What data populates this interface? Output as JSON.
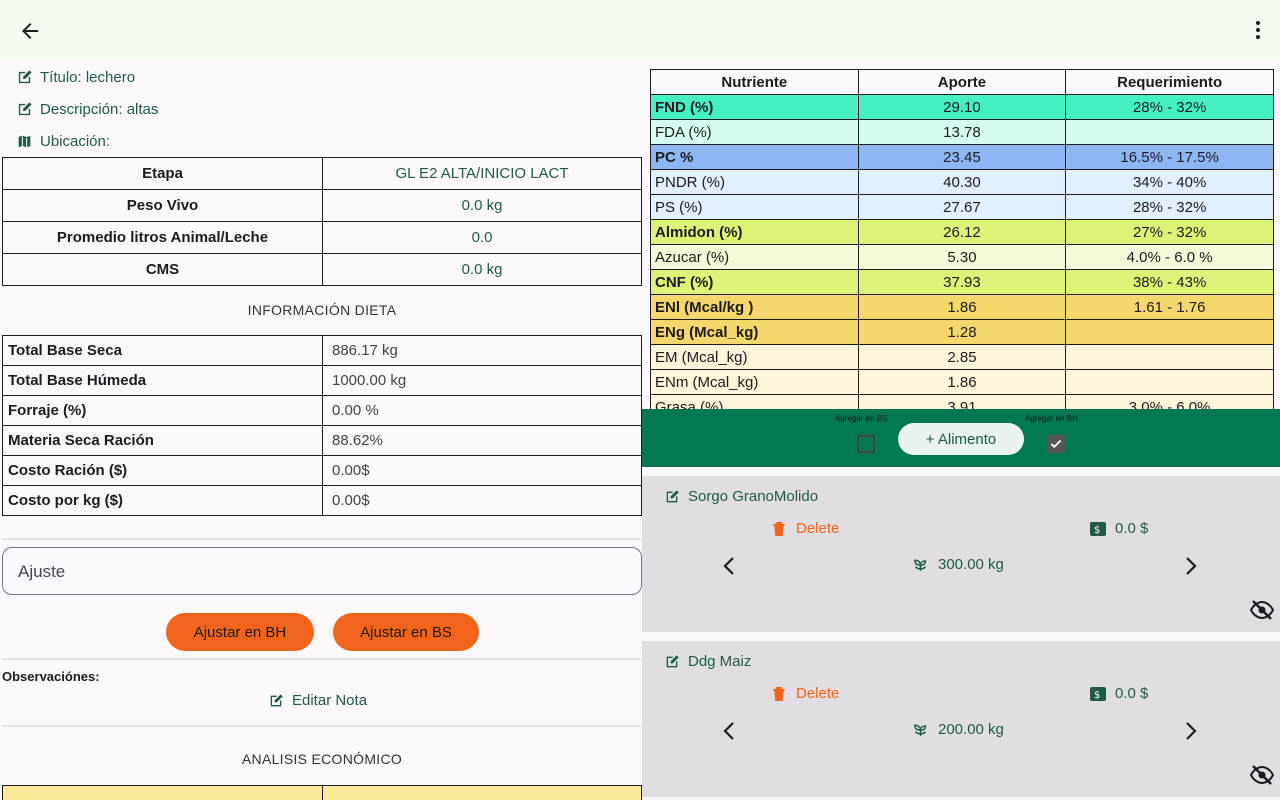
{
  "header": {
    "back_icon": "arrow-left-icon",
    "menu_icon": "more-vert-icon"
  },
  "info": {
    "titulo": "Título: lechero",
    "descripcion": "Descripción: altas",
    "ubicacion": "Ubicación:"
  },
  "animal": [
    {
      "key": "Etapa",
      "value": "GL E2 ALTA/INICIO LACT"
    },
    {
      "key": "Peso Vivo",
      "value": "0.0 kg"
    },
    {
      "key": "Promedio litros Animal/Leche",
      "value": "0.0"
    },
    {
      "key": "CMS",
      "value": "0.0 kg"
    }
  ],
  "dieta_title": "INFORMACIÓN DIETA",
  "dieta": [
    {
      "key": "Total Base Seca",
      "value": "886.17 kg"
    },
    {
      "key": "Total Base Húmeda",
      "value": "1000.00 kg"
    },
    {
      "key": "Forraje (%)",
      "value": "0.00 %"
    },
    {
      "key": "Materia Seca Ración",
      "value": "88.62%"
    },
    {
      "key": "Costo Ración ($)",
      "value": "0.00$"
    },
    {
      "key": "Costo por kg ($)",
      "value": "0.00$"
    }
  ],
  "ajuste_placeholder": "Ajuste",
  "buttons": {
    "ajustar_bh": "Ajustar en BH",
    "ajustar_bs": "Ajustar en BS"
  },
  "observaciones": "Observaciónes:",
  "editar_nota": "Editar Nota",
  "econ_title": "ANALISIS ECONÓMICO",
  "nutrients": {
    "headers": [
      "Nutriente",
      "Aporte",
      "Requerimiento"
    ],
    "rows": [
      {
        "name": "FND (%)",
        "aporte": "29.10",
        "req": "28% - 32%",
        "bold": true,
        "color": "#46f1c1"
      },
      {
        "name": "FDA (%)",
        "aporte": "13.78",
        "req": "",
        "bold": false,
        "color": "#d7fdf1"
      },
      {
        "name": "PC %",
        "aporte": "23.45",
        "req": "16.5% - 17.5%",
        "bold": true,
        "color": "#8db6f4"
      },
      {
        "name": "PNDR (%)",
        "aporte": "40.30",
        "req": "34% - 40%",
        "bold": false,
        "color": "#e0f0fc"
      },
      {
        "name": "PS (%)",
        "aporte": "27.67",
        "req": "28% - 32%",
        "bold": false,
        "color": "#e0f0fc"
      },
      {
        "name": "Almidon (%)",
        "aporte": "26.12",
        "req": "27% - 32%",
        "bold": true,
        "color": "#dcf377"
      },
      {
        "name": "Azucar (%)",
        "aporte": "5.30",
        "req": "4.0% - 6.0 %",
        "bold": false,
        "color": "#f4fad8"
      },
      {
        "name": "CNF (%)",
        "aporte": "37.93",
        "req": "38% - 43%",
        "bold": true,
        "color": "#dcf377"
      },
      {
        "name": "ENl (Mcal/kg )",
        "aporte": "1.86",
        "req": "1.61 - 1.76",
        "bold": true,
        "color": "#f5d76c"
      },
      {
        "name": "ENg (Mcal_kg)",
        "aporte": "1.28",
        "req": "",
        "bold": true,
        "color": "#f5d76c"
      },
      {
        "name": "EM (Mcal_kg)",
        "aporte": "2.85",
        "req": "",
        "bold": false,
        "color": "#fdf6da"
      },
      {
        "name": "ENm (Mcal_kg)",
        "aporte": "1.86",
        "req": "",
        "bold": false,
        "color": "#fdf6da"
      },
      {
        "name": "Grasa (%)",
        "aporte": "3.91",
        "req": "3.0% - 6.0%",
        "bold": false,
        "color": "#fdf6da"
      }
    ]
  },
  "add_bar": {
    "agregar_bs": "Agregar en BS",
    "agregar_bh": "Agregar en BH",
    "add_label": "+ Alimento",
    "bs_checked": false,
    "bh_checked": true
  },
  "foods": [
    {
      "name": "Sorgo GranoMolido",
      "delete": "Delete",
      "price": "0.0 $",
      "weight": "300.00 kg"
    },
    {
      "name": "Ddg Maiz",
      "delete": "Delete",
      "price": "0.0 $",
      "weight": "200.00 kg"
    }
  ]
}
